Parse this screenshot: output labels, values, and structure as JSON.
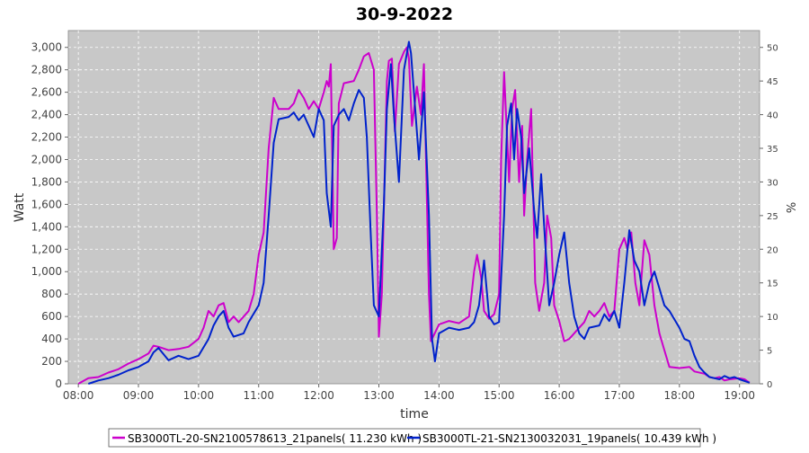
{
  "chart_data": {
    "type": "line",
    "title": "30-9-2022",
    "xlabel": "time",
    "ylabel": "Watt",
    "y2label": "%",
    "ylim": [
      0,
      3150
    ],
    "y2lim": [
      0,
      52.5
    ],
    "xlim": [
      "07:50",
      "19:20"
    ],
    "yticks": [
      0,
      200,
      400,
      600,
      800,
      1000,
      1200,
      1400,
      1600,
      1800,
      2000,
      2200,
      2400,
      2600,
      2800,
      3000
    ],
    "ytick_labels": [
      "0",
      "200",
      "400",
      "600",
      "800",
      "1,000",
      "1,200",
      "1,400",
      "1,600",
      "1,800",
      "2,000",
      "2,200",
      "2,400",
      "2,600",
      "2,800",
      "3,000"
    ],
    "y2ticks": [
      0,
      5,
      10,
      15,
      20,
      25,
      30,
      35,
      40,
      45,
      50
    ],
    "y2tick_labels": [
      "0",
      "5",
      "10",
      "15",
      "20",
      "25",
      "30",
      "35",
      "40",
      "45",
      "50"
    ],
    "xticks": [
      "08:00",
      "09:00",
      "10:00",
      "11:00",
      "12:00",
      "13:00",
      "14:00",
      "15:00",
      "16:00",
      "17:00",
      "18:00",
      "19:00"
    ],
    "grid": true,
    "legend_position": "bottom",
    "colors": {
      "plot_bg": "#c8c8c8",
      "grid": "#ffffff"
    },
    "series": [
      {
        "name": "SB3000TL-20-SN2100578613_21panels( 11.230 kWh )",
        "color": "#cc00cc",
        "points": [
          [
            "08:00",
            0
          ],
          [
            "08:10",
            50
          ],
          [
            "08:20",
            60
          ],
          [
            "08:30",
            100
          ],
          [
            "08:40",
            130
          ],
          [
            "08:50",
            180
          ],
          [
            "09:00",
            220
          ],
          [
            "09:10",
            270
          ],
          [
            "09:15",
            340
          ],
          [
            "09:20",
            330
          ],
          [
            "09:30",
            300
          ],
          [
            "09:40",
            310
          ],
          [
            "09:50",
            330
          ],
          [
            "10:00",
            400
          ],
          [
            "10:05",
            500
          ],
          [
            "10:10",
            650
          ],
          [
            "10:15",
            600
          ],
          [
            "10:20",
            700
          ],
          [
            "10:25",
            720
          ],
          [
            "10:30",
            550
          ],
          [
            "10:35",
            600
          ],
          [
            "10:40",
            550
          ],
          [
            "10:50",
            650
          ],
          [
            "10:55",
            800
          ],
          [
            "11:00",
            1150
          ],
          [
            "11:05",
            1350
          ],
          [
            "11:10",
            2100
          ],
          [
            "11:15",
            2550
          ],
          [
            "11:20",
            2450
          ],
          [
            "11:30",
            2450
          ],
          [
            "11:35",
            2500
          ],
          [
            "11:40",
            2620
          ],
          [
            "11:45",
            2550
          ],
          [
            "11:50",
            2450
          ],
          [
            "11:55",
            2520
          ],
          [
            "12:00",
            2450
          ],
          [
            "12:05",
            2600
          ],
          [
            "12:08",
            2700
          ],
          [
            "12:10",
            2650
          ],
          [
            "12:12",
            2850
          ],
          [
            "12:15",
            1200
          ],
          [
            "12:18",
            1300
          ],
          [
            "12:20",
            2500
          ],
          [
            "12:25",
            2680
          ],
          [
            "12:35",
            2700
          ],
          [
            "12:40",
            2800
          ],
          [
            "12:45",
            2920
          ],
          [
            "12:50",
            2950
          ],
          [
            "12:55",
            2800
          ],
          [
            "12:58",
            1500
          ],
          [
            "13:00",
            420
          ],
          [
            "13:03",
            800
          ],
          [
            "13:08",
            2700
          ],
          [
            "13:10",
            2880
          ],
          [
            "13:13",
            2900
          ],
          [
            "13:16",
            2250
          ],
          [
            "13:20",
            2850
          ],
          [
            "13:25",
            2960
          ],
          [
            "13:28",
            3000
          ],
          [
            "13:30",
            2900
          ],
          [
            "13:33",
            2300
          ],
          [
            "13:38",
            2650
          ],
          [
            "13:42",
            2400
          ],
          [
            "13:45",
            2850
          ],
          [
            "13:50",
            800
          ],
          [
            "13:52",
            380
          ],
          [
            "14:00",
            530
          ],
          [
            "14:10",
            560
          ],
          [
            "14:20",
            540
          ],
          [
            "14:30",
            600
          ],
          [
            "14:35",
            1000
          ],
          [
            "14:38",
            1150
          ],
          [
            "14:42",
            950
          ],
          [
            "14:45",
            650
          ],
          [
            "14:50",
            580
          ],
          [
            "14:55",
            620
          ],
          [
            "15:00",
            800
          ],
          [
            "15:02",
            2000
          ],
          [
            "15:05",
            2780
          ],
          [
            "15:08",
            2200
          ],
          [
            "15:10",
            1800
          ],
          [
            "15:13",
            2450
          ],
          [
            "15:16",
            2620
          ],
          [
            "15:20",
            1800
          ],
          [
            "15:23",
            2300
          ],
          [
            "15:25",
            1500
          ],
          [
            "15:28",
            2000
          ],
          [
            "15:32",
            2450
          ],
          [
            "15:36",
            900
          ],
          [
            "15:40",
            650
          ],
          [
            "15:45",
            900
          ],
          [
            "15:48",
            1500
          ],
          [
            "15:52",
            1300
          ],
          [
            "15:55",
            700
          ],
          [
            "16:00",
            560
          ],
          [
            "16:05",
            380
          ],
          [
            "16:10",
            400
          ],
          [
            "16:20",
            500
          ],
          [
            "16:25",
            550
          ],
          [
            "16:30",
            650
          ],
          [
            "16:35",
            600
          ],
          [
            "16:40",
            650
          ],
          [
            "16:45",
            720
          ],
          [
            "16:50",
            600
          ],
          [
            "16:55",
            650
          ],
          [
            "17:00",
            1200
          ],
          [
            "17:05",
            1300
          ],
          [
            "17:08",
            1200
          ],
          [
            "17:12",
            1350
          ],
          [
            "17:16",
            900
          ],
          [
            "17:20",
            700
          ],
          [
            "17:25",
            1280
          ],
          [
            "17:30",
            1150
          ],
          [
            "17:35",
            700
          ],
          [
            "17:40",
            450
          ],
          [
            "17:45",
            300
          ],
          [
            "17:50",
            150
          ],
          [
            "18:00",
            140
          ],
          [
            "18:10",
            150
          ],
          [
            "18:15",
            110
          ],
          [
            "18:25",
            90
          ],
          [
            "18:30",
            60
          ],
          [
            "18:35",
            50
          ],
          [
            "18:40",
            60
          ],
          [
            "18:45",
            30
          ],
          [
            "18:50",
            40
          ],
          [
            "19:00",
            50
          ],
          [
            "19:05",
            40
          ],
          [
            "19:10",
            10
          ]
        ]
      },
      {
        "name": "SB3000TL-21-SN2130032031_19panels( 10.439 kWh )",
        "color": "#0022cc",
        "points": [
          [
            "08:10",
            0
          ],
          [
            "08:20",
            30
          ],
          [
            "08:30",
            50
          ],
          [
            "08:40",
            80
          ],
          [
            "08:50",
            120
          ],
          [
            "09:00",
            150
          ],
          [
            "09:10",
            200
          ],
          [
            "09:15",
            280
          ],
          [
            "09:20",
            320
          ],
          [
            "09:30",
            210
          ],
          [
            "09:40",
            250
          ],
          [
            "09:50",
            220
          ],
          [
            "10:00",
            250
          ],
          [
            "10:10",
            400
          ],
          [
            "10:15",
            520
          ],
          [
            "10:20",
            600
          ],
          [
            "10:25",
            650
          ],
          [
            "10:30",
            500
          ],
          [
            "10:35",
            420
          ],
          [
            "10:45",
            450
          ],
          [
            "10:50",
            550
          ],
          [
            "11:00",
            700
          ],
          [
            "11:05",
            900
          ],
          [
            "11:10",
            1500
          ],
          [
            "11:15",
            2150
          ],
          [
            "11:20",
            2360
          ],
          [
            "11:30",
            2380
          ],
          [
            "11:35",
            2420
          ],
          [
            "11:40",
            2350
          ],
          [
            "11:45",
            2400
          ],
          [
            "11:50",
            2300
          ],
          [
            "11:55",
            2200
          ],
          [
            "12:00",
            2450
          ],
          [
            "12:05",
            2350
          ],
          [
            "12:08",
            1700
          ],
          [
            "12:12",
            1400
          ],
          [
            "12:15",
            2300
          ],
          [
            "12:20",
            2400
          ],
          [
            "12:25",
            2450
          ],
          [
            "12:30",
            2350
          ],
          [
            "12:35",
            2500
          ],
          [
            "12:40",
            2620
          ],
          [
            "12:45",
            2550
          ],
          [
            "12:48",
            2200
          ],
          [
            "12:52",
            1300
          ],
          [
            "12:55",
            700
          ],
          [
            "13:00",
            600
          ],
          [
            "13:05",
            1600
          ],
          [
            "13:08",
            2450
          ],
          [
            "13:12",
            2850
          ],
          [
            "13:15",
            2400
          ],
          [
            "13:20",
            1800
          ],
          [
            "13:25",
            2800
          ],
          [
            "13:30",
            3050
          ],
          [
            "13:32",
            2950
          ],
          [
            "13:35",
            2600
          ],
          [
            "13:40",
            2000
          ],
          [
            "13:45",
            2600
          ],
          [
            "13:50",
            1500
          ],
          [
            "13:53",
            400
          ],
          [
            "13:56",
            200
          ],
          [
            "14:00",
            450
          ],
          [
            "14:10",
            500
          ],
          [
            "14:20",
            480
          ],
          [
            "14:30",
            500
          ],
          [
            "14:35",
            550
          ],
          [
            "14:40",
            700
          ],
          [
            "14:45",
            1100
          ],
          [
            "14:50",
            600
          ],
          [
            "14:55",
            530
          ],
          [
            "15:00",
            550
          ],
          [
            "15:05",
            1500
          ],
          [
            "15:08",
            2300
          ],
          [
            "15:12",
            2500
          ],
          [
            "15:15",
            2000
          ],
          [
            "15:18",
            2450
          ],
          [
            "15:22",
            2200
          ],
          [
            "15:25",
            1700
          ],
          [
            "15:30",
            2100
          ],
          [
            "15:35",
            1550
          ],
          [
            "15:38",
            1300
          ],
          [
            "15:42",
            1870
          ],
          [
            "15:45",
            1400
          ],
          [
            "15:50",
            700
          ],
          [
            "15:55",
            900
          ],
          [
            "16:00",
            1150
          ],
          [
            "16:05",
            1350
          ],
          [
            "16:10",
            900
          ],
          [
            "16:15",
            600
          ],
          [
            "16:20",
            450
          ],
          [
            "16:25",
            400
          ],
          [
            "16:30",
            500
          ],
          [
            "16:40",
            520
          ],
          [
            "16:45",
            620
          ],
          [
            "16:50",
            560
          ],
          [
            "16:55",
            650
          ],
          [
            "17:00",
            500
          ],
          [
            "17:05",
            900
          ],
          [
            "17:10",
            1370
          ],
          [
            "17:15",
            1100
          ],
          [
            "17:20",
            1000
          ],
          [
            "17:25",
            700
          ],
          [
            "17:30",
            900
          ],
          [
            "17:35",
            1000
          ],
          [
            "17:40",
            850
          ],
          [
            "17:45",
            700
          ],
          [
            "17:50",
            650
          ],
          [
            "18:00",
            500
          ],
          [
            "18:05",
            400
          ],
          [
            "18:10",
            380
          ],
          [
            "18:15",
            250
          ],
          [
            "18:20",
            150
          ],
          [
            "18:25",
            100
          ],
          [
            "18:30",
            60
          ],
          [
            "18:40",
            40
          ],
          [
            "18:45",
            70
          ],
          [
            "18:50",
            50
          ],
          [
            "18:55",
            60
          ],
          [
            "19:00",
            40
          ],
          [
            "19:10",
            10
          ]
        ]
      }
    ]
  }
}
